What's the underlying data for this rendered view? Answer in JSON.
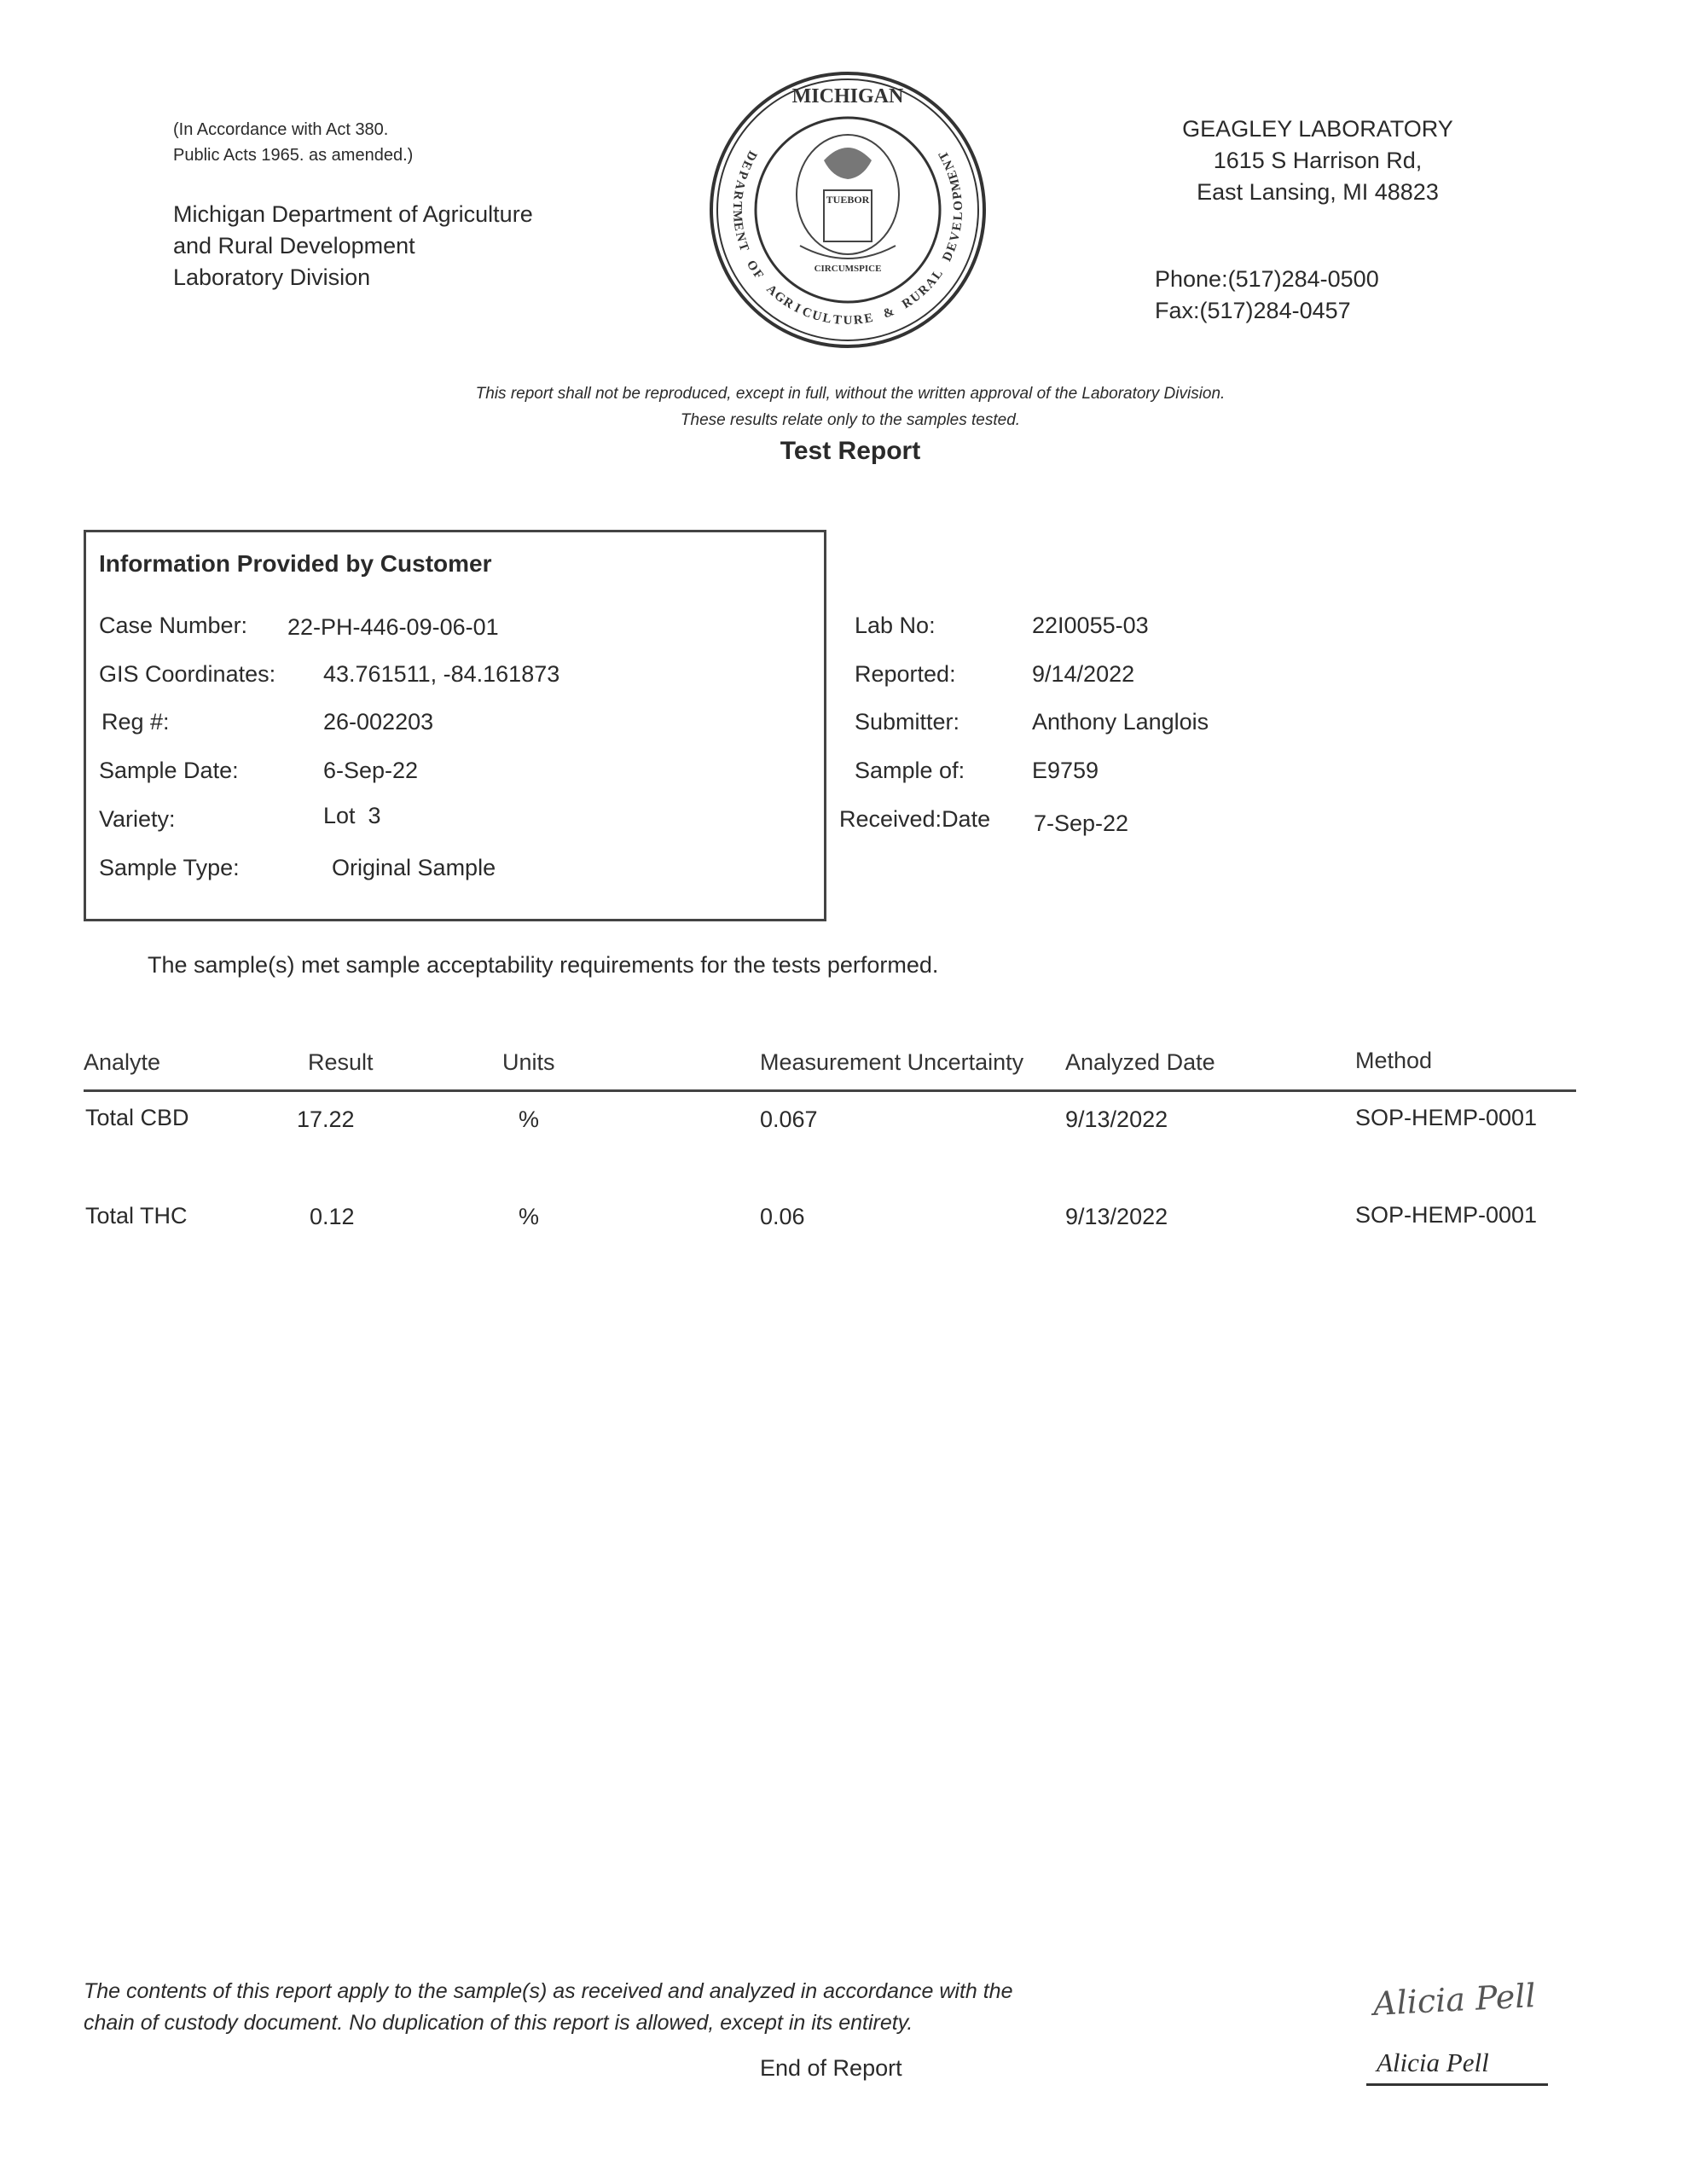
{
  "header": {
    "act_note": [
      "(In Accordance with Act 380.",
      "Public Acts 1965. as amended.)"
    ],
    "department": [
      "Michigan Department of Agriculture",
      "and Rural Development",
      "Laboratory Division"
    ],
    "seal_text": {
      "top": "MICHIGAN",
      "ring": "DEPARTMENT OF AGRICULTURE & RURAL DEVELOPMENT",
      "shield": "TUEBOR",
      "motto": "CIRCUMSPICE"
    },
    "lab_name": "GEAGLEY LABORATORY",
    "lab_address": [
      "1615 S Harrison Rd,",
      "East Lansing, MI 48823"
    ],
    "phone": "Phone:(517)284-0500",
    "fax": "Fax:(517)284-0457"
  },
  "disclaimer": [
    "This report shall not be reproduced, except in full, without the written approval of the Laboratory Division.",
    "These results relate only to the samples tested."
  ],
  "title": "Test Report",
  "customer_info": {
    "heading": "Information Provided by Customer",
    "fields": [
      {
        "label": "Case Number:",
        "value": "22-PH-446-09-06-01"
      },
      {
        "label": "GIS Coordinates:",
        "value": "43.761511, -84.161873"
      },
      {
        "label": "Reg #:",
        "value": "26-002203"
      },
      {
        "label": "Sample Date:",
        "value": "6-Sep-22"
      },
      {
        "label": "Variety:",
        "value": "Lot  3"
      },
      {
        "label": "Sample Type:",
        "value": "Original Sample"
      }
    ]
  },
  "lab_info": [
    {
      "label": "Lab No:",
      "value": "22I0055-03"
    },
    {
      "label": "Reported:",
      "value": "9/14/2022"
    },
    {
      "label": "Submitter:",
      "value": "Anthony Langlois"
    },
    {
      "label": "Sample of:",
      "value": "E9759"
    },
    {
      "label": "Received:Date",
      "value": "7-Sep-22"
    }
  ],
  "acceptability": "The sample(s) met sample acceptability requirements for the tests performed.",
  "results_table": {
    "columns": [
      "Analyte",
      "Result",
      "Units",
      "Measurement Uncertainty",
      "Analyzed Date",
      "Method"
    ],
    "rows": [
      [
        "Total CBD",
        "17.22",
        "%",
        "0.067",
        "9/13/2022",
        "SOP-HEMP-0001"
      ],
      [
        "Total THC",
        "0.12",
        "%",
        "0.06",
        "9/13/2022",
        "SOP-HEMP-0001"
      ]
    ]
  },
  "footer": {
    "note": [
      "The contents of this report apply to the sample(s) as received and analyzed in accordance with the",
      "chain of custody document.  No duplication of this report is allowed, except in its entirety."
    ],
    "end": "End of Report",
    "signature": "Alicia Pell",
    "signer_name": "Alicia Pell"
  }
}
